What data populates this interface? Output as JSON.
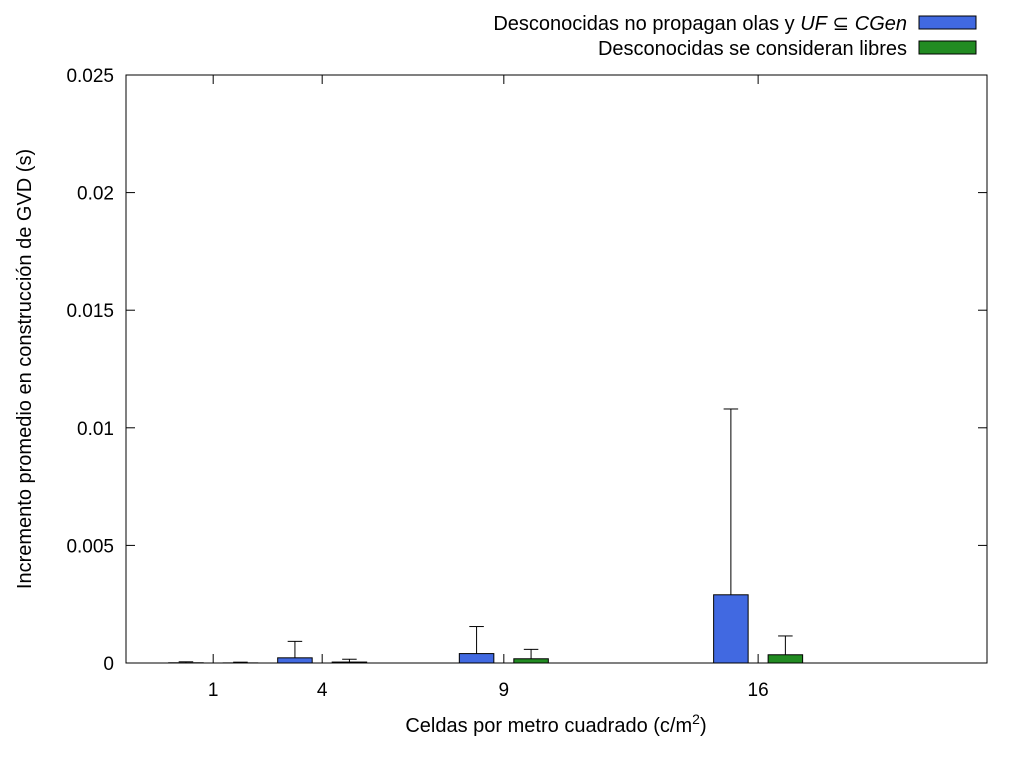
{
  "chart_data": {
    "type": "bar",
    "xlabel": "Celdas por metro cuadrado (c/m",
    "xlabel_sup": "2",
    "xlabel_end": ")",
    "ylabel": "Incremento promedio en construcción de GVD (s)",
    "ylim": [
      0,
      0.025
    ],
    "yticks": [
      "0",
      "0.005",
      "0.01",
      "0.015",
      "0.02",
      "0.025"
    ],
    "categories": [
      "1",
      "4",
      "9",
      "16"
    ],
    "x_values": [
      1,
      4,
      9,
      16
    ],
    "xlim": [
      -1.4,
      22.3
    ],
    "series": [
      {
        "legend_parts": [
          "Desconocidas no propagan olas y ",
          "UF",
          " ⊆ ",
          "CGen"
        ],
        "color": "#4169e1",
        "values": [
          1e-05,
          0.00022,
          0.0004,
          0.0029
        ],
        "errors": [
          4e-05,
          0.0007,
          0.00115,
          0.0079
        ]
      },
      {
        "legend_parts": [
          "Desconocidas se consideran libres"
        ],
        "color": "#228b22",
        "values": [
          5e-06,
          4e-05,
          0.00018,
          0.00035
        ],
        "errors": [
          3e-05,
          0.00012,
          0.0004,
          0.0008
        ]
      }
    ],
    "legend_position": "top-right",
    "grid": false
  }
}
